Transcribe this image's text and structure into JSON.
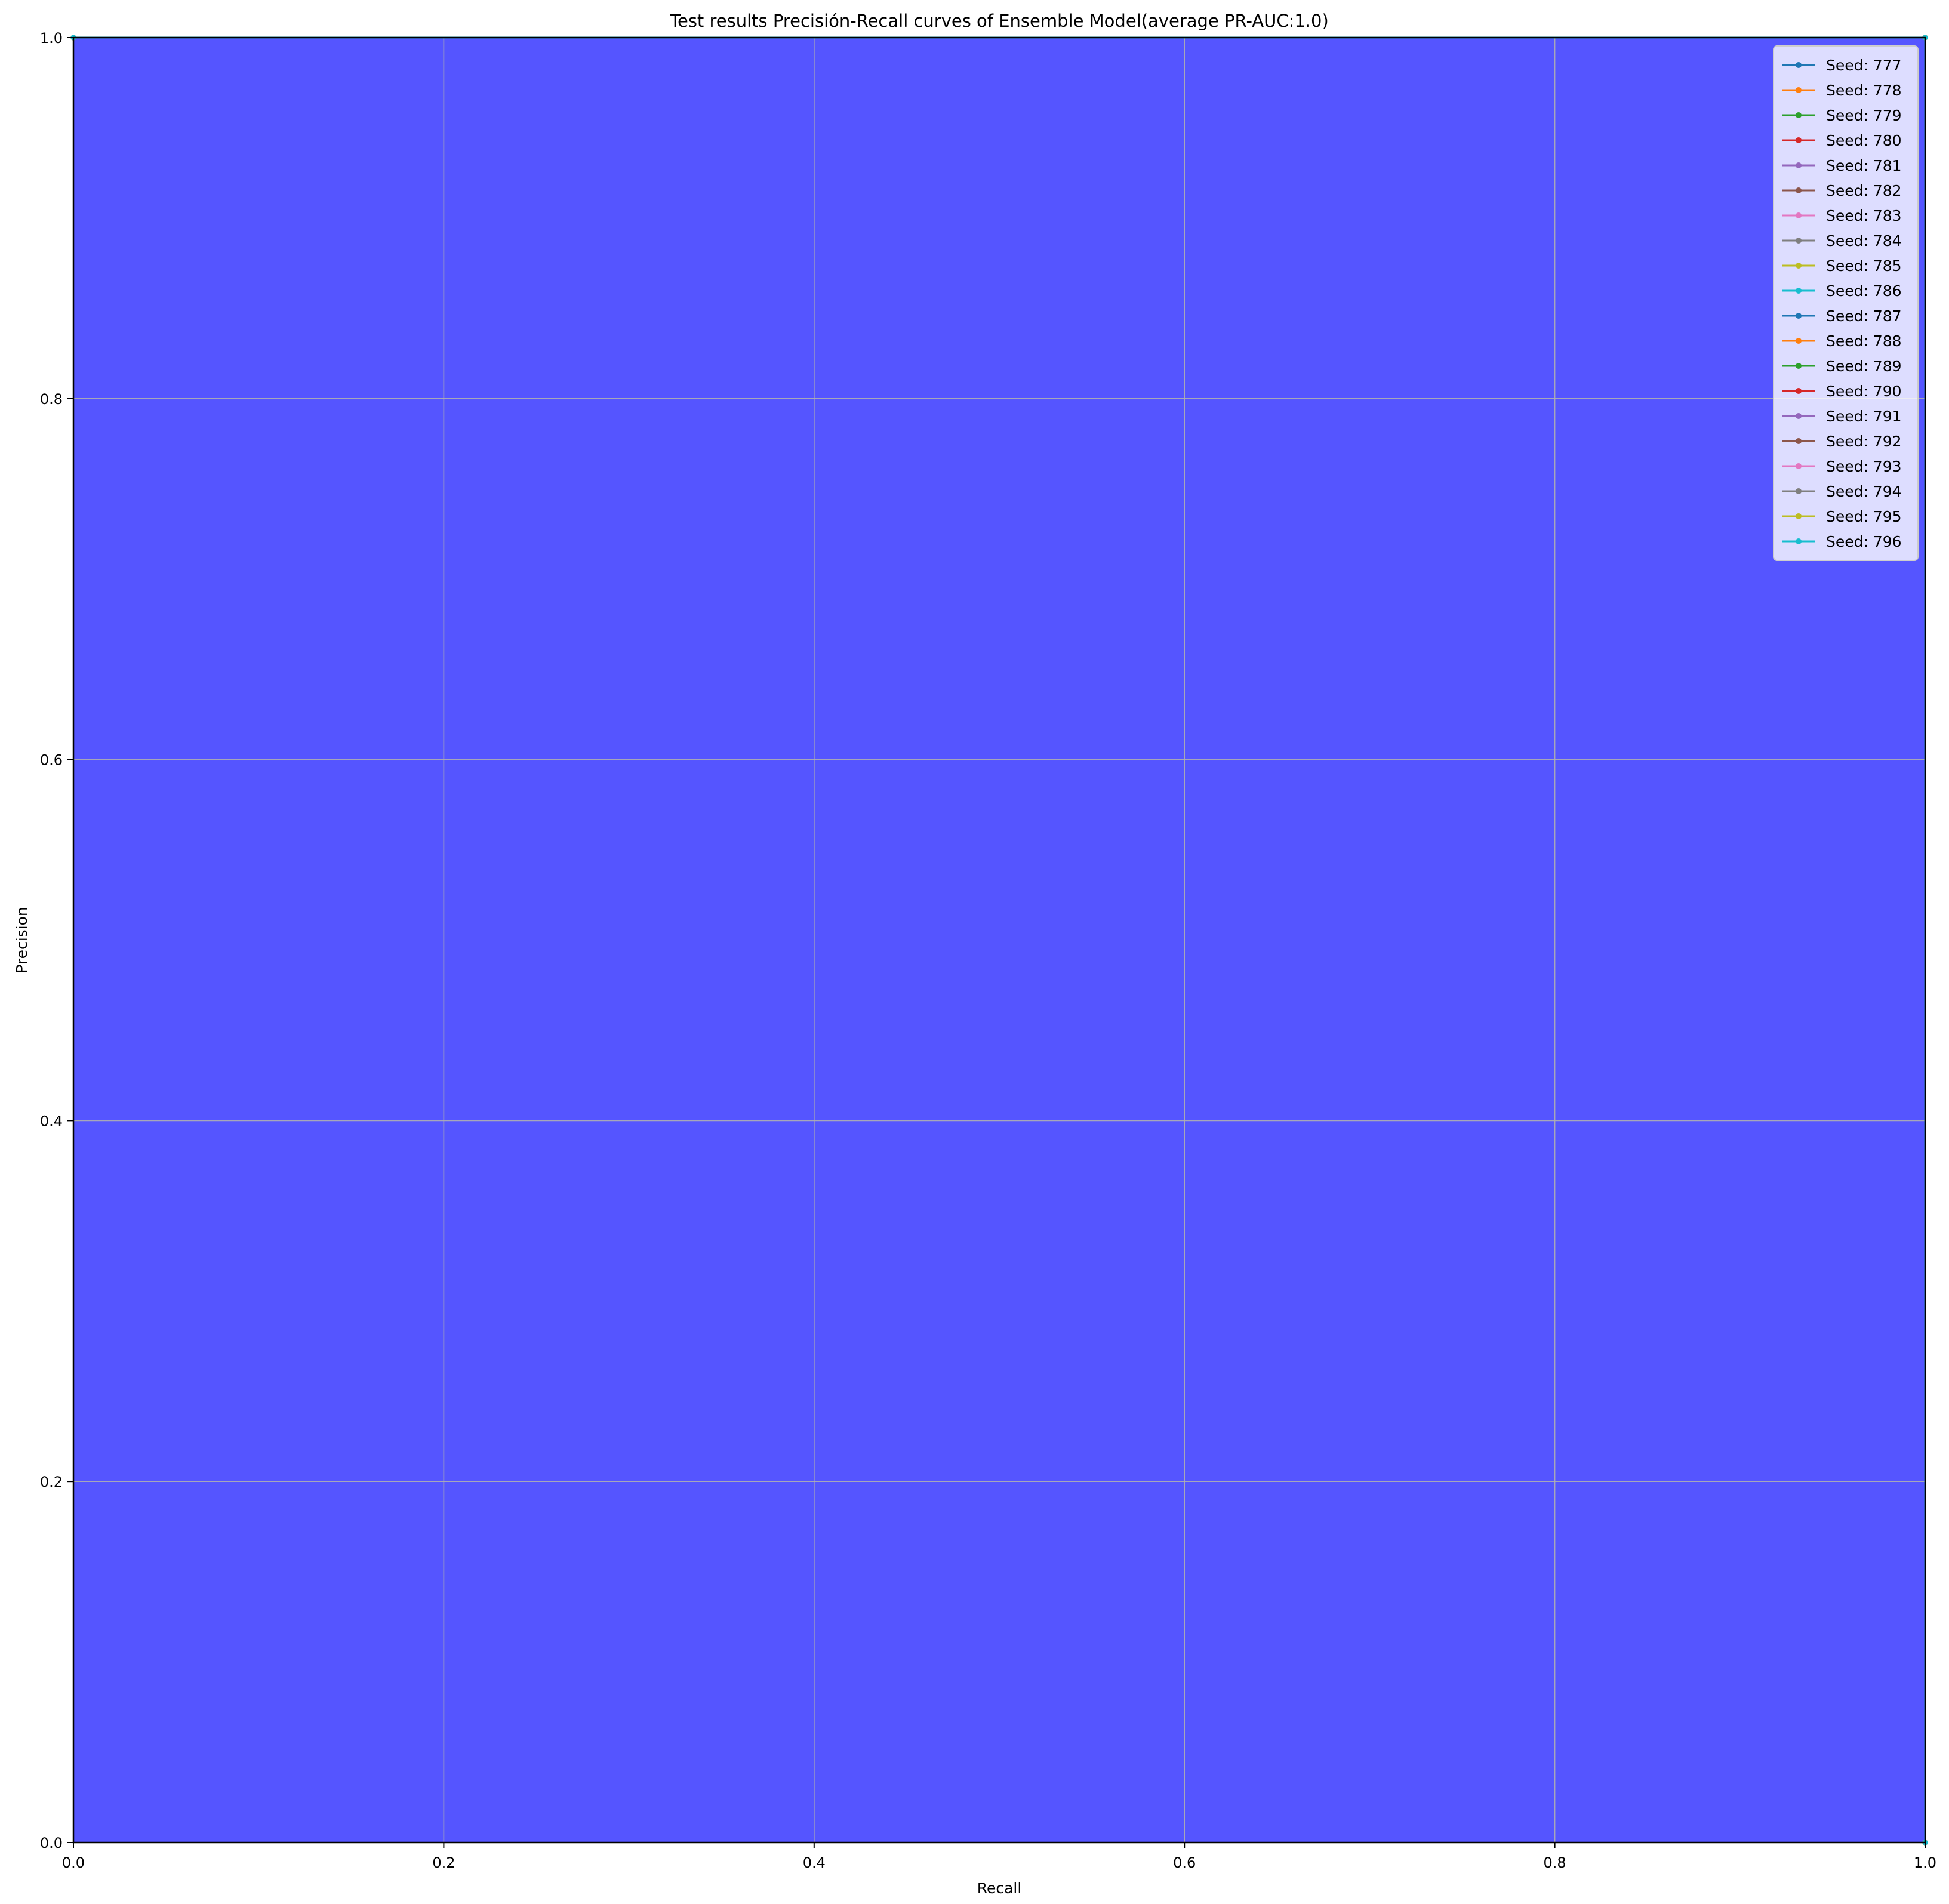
{
  "chart_data": {
    "type": "area",
    "title": "Test results Precisión-Recall curves of Ensemble Model(average PR-AUC:1.0)",
    "xlabel": "Recall",
    "ylabel": "Precision",
    "xlim": [
      0.0,
      1.0
    ],
    "ylim": [
      0.0,
      1.0
    ],
    "xticks": [
      "0.0",
      "0.2",
      "0.4",
      "0.6",
      "0.8",
      "1.0"
    ],
    "yticks": [
      "0.0",
      "0.2",
      "0.4",
      "0.6",
      "0.8",
      "1.0"
    ],
    "grid": true,
    "legend_position": "top-right",
    "fill_color": "#5555ff",
    "series": [
      {
        "name": "Seed: 777",
        "color": "#1f77b4",
        "x": [
          1.0,
          1.0,
          0.0
        ],
        "y": [
          0.0,
          1.0,
          1.0
        ]
      },
      {
        "name": "Seed: 778",
        "color": "#ff7f0e",
        "x": [
          1.0,
          1.0,
          0.0
        ],
        "y": [
          0.0,
          1.0,
          1.0
        ]
      },
      {
        "name": "Seed: 779",
        "color": "#2ca02c",
        "x": [
          1.0,
          1.0,
          0.0
        ],
        "y": [
          0.0,
          1.0,
          1.0
        ]
      },
      {
        "name": "Seed: 780",
        "color": "#d62728",
        "x": [
          1.0,
          1.0,
          0.0
        ],
        "y": [
          0.0,
          1.0,
          1.0
        ]
      },
      {
        "name": "Seed: 781",
        "color": "#9467bd",
        "x": [
          1.0,
          1.0,
          0.0
        ],
        "y": [
          0.0,
          1.0,
          1.0
        ]
      },
      {
        "name": "Seed: 782",
        "color": "#8c564b",
        "x": [
          1.0,
          1.0,
          0.0
        ],
        "y": [
          0.0,
          1.0,
          1.0
        ]
      },
      {
        "name": "Seed: 783",
        "color": "#e377c2",
        "x": [
          1.0,
          1.0,
          0.0
        ],
        "y": [
          0.0,
          1.0,
          1.0
        ]
      },
      {
        "name": "Seed: 784",
        "color": "#7f7f7f",
        "x": [
          1.0,
          1.0,
          0.0
        ],
        "y": [
          0.0,
          1.0,
          1.0
        ]
      },
      {
        "name": "Seed: 785",
        "color": "#bcbd22",
        "x": [
          1.0,
          1.0,
          0.0
        ],
        "y": [
          0.0,
          1.0,
          1.0
        ]
      },
      {
        "name": "Seed: 786",
        "color": "#17becf",
        "x": [
          1.0,
          1.0,
          0.0
        ],
        "y": [
          0.0,
          1.0,
          1.0
        ]
      },
      {
        "name": "Seed: 787",
        "color": "#1f77b4",
        "x": [
          1.0,
          1.0,
          0.0
        ],
        "y": [
          0.0,
          1.0,
          1.0
        ]
      },
      {
        "name": "Seed: 788",
        "color": "#ff7f0e",
        "x": [
          1.0,
          1.0,
          0.0
        ],
        "y": [
          0.0,
          1.0,
          1.0
        ]
      },
      {
        "name": "Seed: 789",
        "color": "#2ca02c",
        "x": [
          1.0,
          1.0,
          0.0
        ],
        "y": [
          0.0,
          1.0,
          1.0
        ]
      },
      {
        "name": "Seed: 790",
        "color": "#d62728",
        "x": [
          1.0,
          1.0,
          0.0
        ],
        "y": [
          0.0,
          1.0,
          1.0
        ]
      },
      {
        "name": "Seed: 791",
        "color": "#9467bd",
        "x": [
          1.0,
          1.0,
          0.0
        ],
        "y": [
          0.0,
          1.0,
          1.0
        ]
      },
      {
        "name": "Seed: 792",
        "color": "#8c564b",
        "x": [
          1.0,
          1.0,
          0.0
        ],
        "y": [
          0.0,
          1.0,
          1.0
        ]
      },
      {
        "name": "Seed: 793",
        "color": "#e377c2",
        "x": [
          1.0,
          1.0,
          0.0
        ],
        "y": [
          0.0,
          1.0,
          1.0
        ]
      },
      {
        "name": "Seed: 794",
        "color": "#7f7f7f",
        "x": [
          1.0,
          1.0,
          0.0
        ],
        "y": [
          0.0,
          1.0,
          1.0
        ]
      },
      {
        "name": "Seed: 795",
        "color": "#bcbd22",
        "x": [
          1.0,
          1.0,
          0.0
        ],
        "y": [
          0.0,
          1.0,
          1.0
        ]
      },
      {
        "name": "Seed: 796",
        "color": "#17becf",
        "x": [
          1.0,
          1.0,
          0.0
        ],
        "y": [
          0.0,
          1.0,
          1.0
        ]
      }
    ]
  }
}
